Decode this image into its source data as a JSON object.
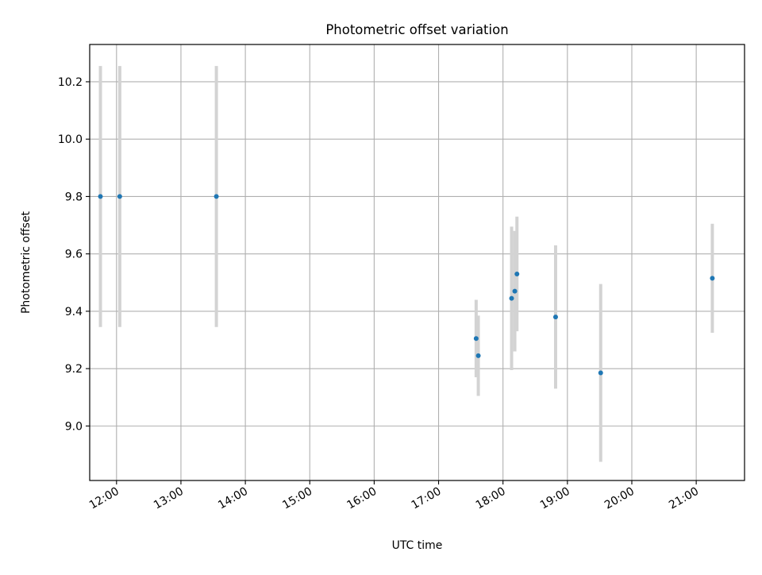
{
  "chart_data": {
    "type": "scatter",
    "title": "Photometric offset variation",
    "xlabel": "UTC time",
    "ylabel": "Photometric offset",
    "grid": true,
    "xlim": [
      "11:35",
      "21:45"
    ],
    "ylim": [
      8.81,
      10.33
    ],
    "x_ticks": [
      "12:00",
      "13:00",
      "14:00",
      "15:00",
      "16:00",
      "17:00",
      "18:00",
      "19:00",
      "20:00",
      "21:00"
    ],
    "y_ticks": [
      "9.0",
      "9.2",
      "9.4",
      "9.6",
      "9.8",
      "10.0",
      "10.2"
    ],
    "colors": {
      "marker": "#1f77b4",
      "errorbar": "#d3d3d3",
      "grid": "#b0b0b0"
    },
    "series": [
      {
        "points": [
          {
            "time": "11:45",
            "value": 9.8,
            "low": 9.345,
            "high": 10.255
          },
          {
            "time": "12:03",
            "value": 9.8,
            "low": 9.345,
            "high": 10.255
          },
          {
            "time": "13:33",
            "value": 9.8,
            "low": 9.345,
            "high": 10.255
          },
          {
            "time": "17:35",
            "value": 9.305,
            "low": 9.17,
            "high": 9.44
          },
          {
            "time": "17:37",
            "value": 9.245,
            "low": 9.105,
            "high": 9.385
          },
          {
            "time": "18:08",
            "value": 9.445,
            "low": 9.195,
            "high": 9.695
          },
          {
            "time": "18:11",
            "value": 9.47,
            "low": 9.26,
            "high": 9.68
          },
          {
            "time": "18:13",
            "value": 9.53,
            "low": 9.33,
            "high": 9.73
          },
          {
            "time": "18:49",
            "value": 9.38,
            "low": 9.13,
            "high": 9.63
          },
          {
            "time": "19:31",
            "value": 9.185,
            "low": 8.875,
            "high": 9.495
          },
          {
            "time": "21:15",
            "value": 9.515,
            "low": 9.325,
            "high": 9.705
          }
        ]
      }
    ]
  }
}
